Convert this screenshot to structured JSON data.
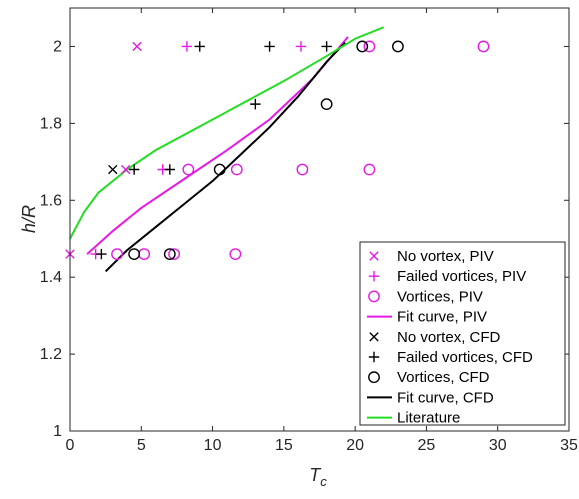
{
  "chart_data": {
    "type": "scatter",
    "xlabel": "T",
    "xlabel_sub": "c",
    "ylabel": "h/R",
    "xlim": [
      0,
      35
    ],
    "ylim": [
      1,
      2.1
    ],
    "x_ticks": [
      "0",
      "5",
      "10",
      "15",
      "20",
      "25",
      "30",
      "35"
    ],
    "y_ticks": [
      "1",
      "1.2",
      "1.4",
      "1.6",
      "1.8",
      "2"
    ],
    "grid": false,
    "legend_position": "bottom-right",
    "series": [
      {
        "name": "No vortex, PIV",
        "marker": "x",
        "color": "#e619e6",
        "points": [
          [
            0,
            1.46
          ],
          [
            3.9,
            1.68
          ],
          [
            4.7,
            2.0
          ]
        ]
      },
      {
        "name": "Failed vortices, PIV",
        "marker": "+",
        "color": "#e619e6",
        "points": [
          [
            1.8,
            1.46
          ],
          [
            6.5,
            1.68
          ],
          [
            8.2,
            2.0
          ],
          [
            16.2,
            2.0
          ]
        ]
      },
      {
        "name": "Vortices, PIV",
        "marker": "o",
        "color": "#e619e6",
        "points": [
          [
            3.3,
            1.46
          ],
          [
            5.2,
            1.46
          ],
          [
            7.3,
            1.46
          ],
          [
            11.6,
            1.46
          ],
          [
            8.3,
            1.68
          ],
          [
            11.7,
            1.68
          ],
          [
            16.3,
            1.68
          ],
          [
            21.0,
            1.68
          ],
          [
            21.0,
            2.0
          ],
          [
            29.0,
            2.0
          ]
        ]
      },
      {
        "name": "Fit curve, PIV",
        "marker": "line",
        "color": "#e619e6",
        "points": [
          [
            1.2,
            1.46
          ],
          [
            3,
            1.52
          ],
          [
            5,
            1.58
          ],
          [
            8,
            1.655
          ],
          [
            11,
            1.73
          ],
          [
            14,
            1.81
          ],
          [
            17,
            1.915
          ],
          [
            19.5,
            2.025
          ]
        ]
      },
      {
        "name": "No vortex, CFD",
        "marker": "x",
        "color": "#000000",
        "points": [
          [
            3.0,
            1.68
          ]
        ]
      },
      {
        "name": "Failed vortices, CFD",
        "marker": "+",
        "color": "#000000",
        "points": [
          [
            2.2,
            1.46
          ],
          [
            4.5,
            1.68
          ],
          [
            7.0,
            1.68
          ],
          [
            9.1,
            2.0
          ],
          [
            14.0,
            2.0
          ],
          [
            13.0,
            1.85
          ],
          [
            18.0,
            2.0
          ]
        ]
      },
      {
        "name": "Vortices, CFD",
        "marker": "o",
        "color": "#000000",
        "points": [
          [
            4.5,
            1.46
          ],
          [
            7.0,
            1.46
          ],
          [
            10.5,
            1.68
          ],
          [
            18.0,
            1.85
          ],
          [
            20.5,
            2.0
          ],
          [
            23.0,
            2.0
          ]
        ]
      },
      {
        "name": "Fit curve, CFD",
        "marker": "line",
        "color": "#000000",
        "points": [
          [
            2.5,
            1.415
          ],
          [
            4,
            1.47
          ],
          [
            6,
            1.53
          ],
          [
            8,
            1.59
          ],
          [
            10,
            1.65
          ],
          [
            12,
            1.72
          ],
          [
            14,
            1.79
          ],
          [
            16,
            1.87
          ],
          [
            18,
            1.96
          ],
          [
            19.3,
            2.01
          ]
        ]
      },
      {
        "name": "Literature",
        "marker": "line",
        "color": "#22dd22",
        "points": [
          [
            0,
            1.5
          ],
          [
            1,
            1.57
          ],
          [
            2,
            1.62
          ],
          [
            4,
            1.68
          ],
          [
            6,
            1.73
          ],
          [
            9,
            1.79
          ],
          [
            12,
            1.85
          ],
          [
            15,
            1.91
          ],
          [
            18,
            1.975
          ],
          [
            20,
            2.02
          ],
          [
            22,
            2.05
          ]
        ]
      }
    ]
  }
}
